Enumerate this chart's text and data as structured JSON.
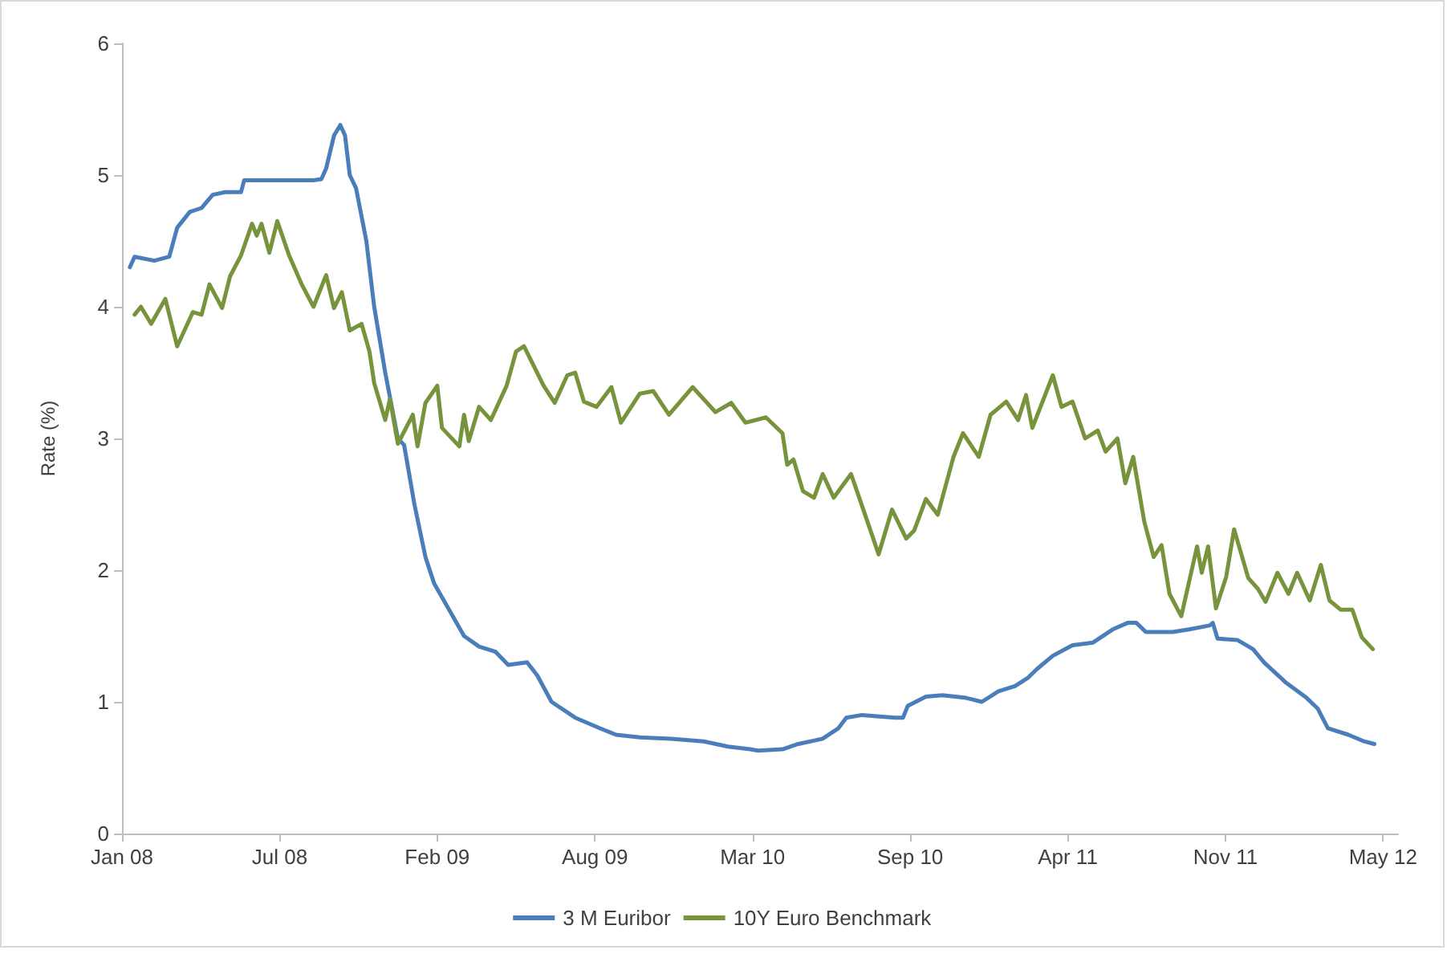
{
  "chart_data": {
    "type": "line",
    "ylabel": "Rate (%)",
    "xlim": [
      "2008-01-02",
      "2012-06-08"
    ],
    "xticks": [
      {
        "value": "2008-01-02",
        "label": "Jan 08"
      },
      {
        "value": "2008-07-20",
        "label": "Jul 08"
      },
      {
        "value": "2009-02-05",
        "label": "Feb 09"
      },
      {
        "value": "2009-08-24",
        "label": "Aug 09"
      },
      {
        "value": "2010-03-12",
        "label": "Mar 10"
      },
      {
        "value": "2010-09-28",
        "label": "Sep 10"
      },
      {
        "value": "2011-04-16",
        "label": "Apr 11"
      },
      {
        "value": "2011-11-02",
        "label": "Nov 11"
      },
      {
        "value": "2012-05-20",
        "label": "May 12"
      }
    ],
    "ylim": [
      0,
      6
    ],
    "yticks": [
      0,
      1,
      2,
      3,
      4,
      5,
      6
    ],
    "grid": false,
    "legend": "bottom",
    "marker": "none",
    "line_style": "solid",
    "series": [
      {
        "name": "3 M Euribor",
        "color": "#4a7ebb",
        "x": [
          "2008-01-12",
          "2008-01-18",
          "2008-02-12",
          "2008-03-02",
          "2008-03-12",
          "2008-03-28",
          "2008-04-12",
          "2008-04-26",
          "2008-05-12",
          "2008-06-01",
          "2008-06-05",
          "2008-06-21",
          "2008-09-01",
          "2008-09-11",
          "2008-09-17",
          "2008-09-27",
          "2008-10-05",
          "2008-10-11",
          "2008-10-17",
          "2008-10-25",
          "2008-11-07",
          "2008-11-17",
          "2008-12-01",
          "2008-12-17",
          "2008-12-25",
          "2009-01-07",
          "2009-01-21",
          "2009-02-01",
          "2009-02-20",
          "2009-03-11",
          "2009-03-30",
          "2009-04-20",
          "2009-05-06",
          "2009-05-30",
          "2009-06-12",
          "2009-06-30",
          "2009-07-30",
          "2009-08-30",
          "2009-09-20",
          "2009-10-20",
          "2009-11-29",
          "2010-01-09",
          "2010-02-09",
          "2010-03-09",
          "2010-03-19",
          "2010-04-19",
          "2010-05-09",
          "2010-06-09",
          "2010-06-29",
          "2010-07-09",
          "2010-07-29",
          "2010-09-09",
          "2010-09-19",
          "2010-09-25",
          "2010-10-18",
          "2010-11-08",
          "2010-12-08",
          "2010-12-28",
          "2011-01-18",
          "2011-02-08",
          "2011-02-24",
          "2011-03-08",
          "2011-03-28",
          "2011-04-22",
          "2011-05-18",
          "2011-06-12",
          "2011-07-01",
          "2011-07-12",
          "2011-07-24",
          "2011-08-27",
          "2011-09-17",
          "2011-10-13",
          "2011-10-17",
          "2011-10-23",
          "2011-11-17",
          "2011-12-07",
          "2011-12-21",
          "2012-01-17",
          "2012-02-13",
          "2012-02-27",
          "2012-03-11",
          "2012-04-06",
          "2012-04-26",
          "2012-05-09"
        ],
        "values": [
          4.3,
          4.38,
          4.35,
          4.38,
          4.6,
          4.72,
          4.75,
          4.85,
          4.87,
          4.87,
          4.96,
          4.96,
          4.96,
          4.97,
          5.05,
          5.3,
          5.38,
          5.3,
          5.0,
          4.9,
          4.5,
          4.0,
          3.5,
          3.0,
          2.95,
          2.5,
          2.1,
          1.9,
          1.7,
          1.5,
          1.42,
          1.38,
          1.28,
          1.3,
          1.2,
          1.0,
          0.88,
          0.8,
          0.75,
          0.73,
          0.72,
          0.7,
          0.66,
          0.64,
          0.63,
          0.64,
          0.68,
          0.72,
          0.8,
          0.88,
          0.9,
          0.88,
          0.88,
          0.97,
          1.04,
          1.05,
          1.03,
          1.0,
          1.08,
          1.12,
          1.18,
          1.25,
          1.35,
          1.43,
          1.45,
          1.55,
          1.6,
          1.6,
          1.53,
          1.53,
          1.55,
          1.58,
          1.6,
          1.48,
          1.47,
          1.4,
          1.3,
          1.15,
          1.03,
          0.95,
          0.8,
          0.75,
          0.7,
          0.68
        ]
      },
      {
        "name": "10Y Euro Benchmark",
        "color": "#77933c",
        "x": [
          "2008-01-18",
          "2008-01-26",
          "2008-02-08",
          "2008-02-26",
          "2008-03-12",
          "2008-04-01",
          "2008-04-12",
          "2008-04-22",
          "2008-05-08",
          "2008-05-18",
          "2008-06-01",
          "2008-06-15",
          "2008-06-21",
          "2008-06-27",
          "2008-07-07",
          "2008-07-17",
          "2008-08-01",
          "2008-08-17",
          "2008-09-01",
          "2008-09-17",
          "2008-09-27",
          "2008-10-07",
          "2008-10-17",
          "2008-11-01",
          "2008-11-11",
          "2008-11-17",
          "2008-12-01",
          "2008-12-07",
          "2008-12-17",
          "2009-01-05",
          "2009-01-11",
          "2009-01-21",
          "2009-02-05",
          "2009-02-11",
          "2009-03-05",
          "2009-03-11",
          "2009-03-17",
          "2009-03-30",
          "2009-04-14",
          "2009-05-04",
          "2009-05-16",
          "2009-05-26",
          "2009-06-20",
          "2009-07-04",
          "2009-07-20",
          "2009-07-30",
          "2009-08-10",
          "2009-08-26",
          "2009-09-14",
          "2009-09-26",
          "2009-10-20",
          "2009-11-06",
          "2009-11-26",
          "2009-12-26",
          "2010-01-24",
          "2010-02-13",
          "2010-03-03",
          "2010-03-29",
          "2010-04-19",
          "2010-04-25",
          "2010-05-03",
          "2010-05-15",
          "2010-05-29",
          "2010-06-09",
          "2010-06-23",
          "2010-07-15",
          "2010-08-03",
          "2010-08-19",
          "2010-09-05",
          "2010-09-23",
          "2010-10-03",
          "2010-10-18",
          "2010-11-02",
          "2010-11-22",
          "2010-12-04",
          "2010-12-24",
          "2011-01-08",
          "2011-01-28",
          "2011-02-12",
          "2011-02-22",
          "2011-03-02",
          "2011-03-28",
          "2011-04-08",
          "2011-04-22",
          "2011-05-08",
          "2011-05-24",
          "2011-06-03",
          "2011-06-18",
          "2011-06-28",
          "2011-07-08",
          "2011-07-22",
          "2011-08-03",
          "2011-08-13",
          "2011-08-23",
          "2011-09-07",
          "2011-09-27",
          "2011-10-03",
          "2011-10-11",
          "2011-10-21",
          "2011-11-03",
          "2011-11-13",
          "2011-12-01",
          "2011-12-13",
          "2011-12-23",
          "2012-01-07",
          "2012-01-21",
          "2012-02-01",
          "2012-02-17",
          "2012-03-02",
          "2012-03-13",
          "2012-03-27",
          "2012-04-11",
          "2012-04-23",
          "2012-05-07"
        ],
        "values": [
          3.94,
          4.0,
          3.87,
          4.06,
          3.7,
          3.96,
          3.94,
          4.17,
          3.99,
          4.23,
          4.39,
          4.63,
          4.54,
          4.63,
          4.41,
          4.65,
          4.39,
          4.17,
          4.0,
          4.24,
          3.99,
          4.11,
          3.82,
          3.87,
          3.66,
          3.42,
          3.14,
          3.3,
          2.96,
          3.18,
          2.94,
          3.27,
          3.4,
          3.08,
          2.94,
          3.18,
          2.98,
          3.24,
          3.14,
          3.4,
          3.66,
          3.7,
          3.4,
          3.27,
          3.48,
          3.5,
          3.28,
          3.24,
          3.39,
          3.12,
          3.34,
          3.36,
          3.18,
          3.39,
          3.2,
          3.27,
          3.12,
          3.16,
          3.04,
          2.8,
          2.84,
          2.6,
          2.55,
          2.73,
          2.55,
          2.73,
          2.4,
          2.12,
          2.46,
          2.24,
          2.3,
          2.54,
          2.42,
          2.86,
          3.04,
          2.86,
          3.18,
          3.28,
          3.14,
          3.33,
          3.08,
          3.48,
          3.24,
          3.28,
          3.0,
          3.06,
          2.9,
          3.0,
          2.66,
          2.86,
          2.37,
          2.1,
          2.19,
          1.82,
          1.65,
          2.18,
          1.98,
          2.18,
          1.71,
          1.95,
          2.31,
          1.94,
          1.86,
          1.76,
          1.98,
          1.82,
          1.98,
          1.77,
          2.04,
          1.77,
          1.7,
          1.7,
          1.49,
          1.4
        ]
      }
    ]
  }
}
